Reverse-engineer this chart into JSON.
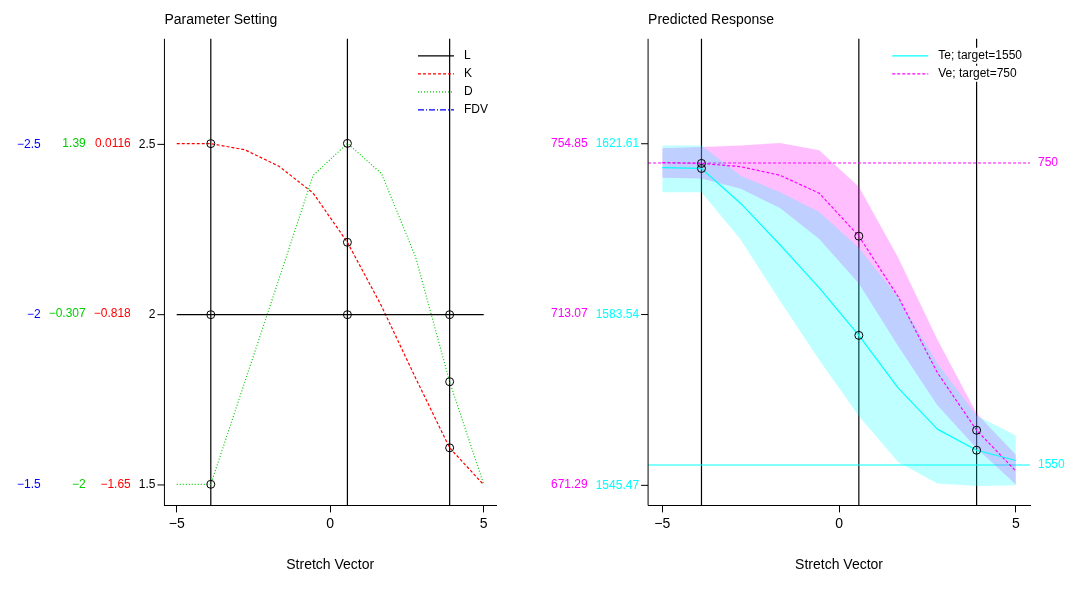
{
  "chart_data": [
    {
      "type": "line",
      "title": "Parameter Setting",
      "xlabel": "Stretch Vector",
      "x": [
        -5,
        -3.89,
        -2.78,
        -1.67,
        -0.56,
        0.56,
        1.67,
        2.78,
        3.89,
        5
      ],
      "xlim": [
        -5.4,
        5.4
      ],
      "xticks": [
        -5,
        0,
        5
      ],
      "ylim": [
        1.44,
        2.81
      ],
      "yticks": [
        1.5,
        2,
        2.5
      ],
      "y2lim": [
        -1.75,
        0.52
      ],
      "y2ticks": [
        -1.65,
        -0.818,
        0.0116
      ],
      "y3lim": [
        -2.21,
        2.43
      ],
      "y3ticks": [
        -2,
        -0.307,
        1.39
      ],
      "annotations": [
        "−2.5",
        "−2",
        "−1.5"
      ],
      "grid": false,
      "legend": "top right",
      "marker": "none",
      "ref_lines": [
        {
          "axis": "x",
          "value": -3.89,
          "color": "#000000"
        },
        {
          "axis": "x",
          "value": 0.56,
          "color": "#000000"
        },
        {
          "axis": "x",
          "value": 3.89,
          "color": "#000000"
        }
      ],
      "series": [
        {
          "name": "L",
          "color": "#000000",
          "line_style": "solid",
          "values": [
            2,
            2,
            2,
            2,
            2,
            2,
            2,
            2,
            2,
            2
          ]
        },
        {
          "name": "K",
          "color": "#ff0000",
          "line_style": "dashed",
          "axis": "y2",
          "values": [
            0.01,
            0.01,
            -0.02,
            -0.1,
            -0.23,
            -0.47,
            -0.78,
            -1.13,
            -1.47,
            -1.65
          ]
        },
        {
          "name": "D",
          "color": "#00cd00",
          "line_style": "dotted",
          "axis": "y3",
          "values": [
            -2,
            -2,
            -0.98,
            0.04,
            1.07,
            1.39,
            1.09,
            0.26,
            -0.98,
            -2
          ]
        },
        {
          "name": "FDV",
          "color": "#0000ff",
          "line_style": "dashdot",
          "values": [
            null,
            null,
            null,
            null,
            null,
            null,
            null,
            null,
            null,
            null
          ]
        },
        {
          "type": "scatter",
          "color": "#000000",
          "marker": "circle",
          "x": [
            -3.89,
            0.56,
            3.89
          ],
          "values": [
            2,
            2,
            2
          ]
        },
        {
          "type": "scatter",
          "color": "#000000",
          "marker": "circle",
          "axis": "y2",
          "x": [
            -3.89,
            0.56,
            3.89
          ],
          "values": [
            0.01,
            -0.47,
            -1.47
          ]
        },
        {
          "type": "scatter",
          "color": "#000000",
          "marker": "circle",
          "axis": "y3",
          "x": [
            -3.89,
            0.56,
            3.89
          ],
          "values": [
            -2,
            1.39,
            -0.98
          ]
        }
      ]
    },
    {
      "type": "line",
      "title": "Predicted Response",
      "xlabel": "Stretch Vector",
      "x": [
        -5,
        -3.89,
        -2.78,
        -1.67,
        -0.56,
        0.56,
        1.67,
        2.78,
        3.89,
        5
      ],
      "xlim": [
        -5.4,
        5.4
      ],
      "xticks": [
        -5,
        0,
        5
      ],
      "ylim": [
        1541,
        1645
      ],
      "yticks": [
        1545.47,
        1583.54,
        1621.61
      ],
      "y2lim": [
        666.2,
        780.4
      ],
      "y2ticks": [
        671.29,
        713.07,
        754.85
      ],
      "grid": false,
      "legend": "top right",
      "marker": "none",
      "ref_lines": [
        {
          "axis": "x",
          "value": -3.89,
          "color": "#000000"
        },
        {
          "axis": "x",
          "value": 0.56,
          "color": "#000000"
        },
        {
          "axis": "x",
          "value": 3.89,
          "color": "#000000"
        },
        {
          "axis": "y",
          "value": 1550,
          "label": "1550",
          "color": "#00ffff",
          "line_style": "solid"
        },
        {
          "axis": "y2",
          "value": 750,
          "label": "750",
          "color": "#ff00ff",
          "line_style": "dashed"
        }
      ],
      "series": [
        {
          "name": "Te; target=1550",
          "color": "#00ffff",
          "line_style": "solid",
          "values": [
            1616.3,
            1616.1,
            1608.3,
            1599.1,
            1589.5,
            1578.9,
            1567.2,
            1558,
            1553.3,
            1551
          ],
          "lower": [
            1610.8,
            1610.8,
            1600.2,
            1586.6,
            1573.4,
            1560.9,
            1550.7,
            1545.9,
            1545.3,
            1545.5
          ],
          "upper": [
            1621.2,
            1621.2,
            1614.5,
            1610.8,
            1606.4,
            1598.4,
            1587.4,
            1572.7,
            1561,
            1556.6
          ]
        },
        {
          "name": "Ve; target=750",
          "color": "#ff00ff",
          "line_style": "dashed",
          "axis": "y2",
          "values": [
            750.1,
            749.9,
            749.1,
            747,
            742.6,
            732.1,
            717.3,
            698.7,
            684.6,
            674.6
          ],
          "lower": [
            746.4,
            746.2,
            743.7,
            739,
            731.4,
            720.5,
            705.2,
            690.7,
            680.2,
            671.3
          ],
          "upper": [
            753.6,
            753.9,
            754.3,
            754.9,
            753.1,
            744.2,
            726.9,
            706.8,
            688.7,
            678.6
          ]
        },
        {
          "type": "scatter",
          "color": "#000000",
          "marker": "circle",
          "x": [
            -3.89,
            0.56,
            3.89
          ],
          "values": [
            1616.1,
            1578.9,
            1553.3
          ]
        },
        {
          "type": "scatter",
          "color": "#000000",
          "marker": "circle",
          "axis": "y2",
          "x": [
            -3.89,
            0.56,
            3.89
          ],
          "values": [
            749.9,
            732.1,
            684.6
          ]
        }
      ]
    }
  ]
}
